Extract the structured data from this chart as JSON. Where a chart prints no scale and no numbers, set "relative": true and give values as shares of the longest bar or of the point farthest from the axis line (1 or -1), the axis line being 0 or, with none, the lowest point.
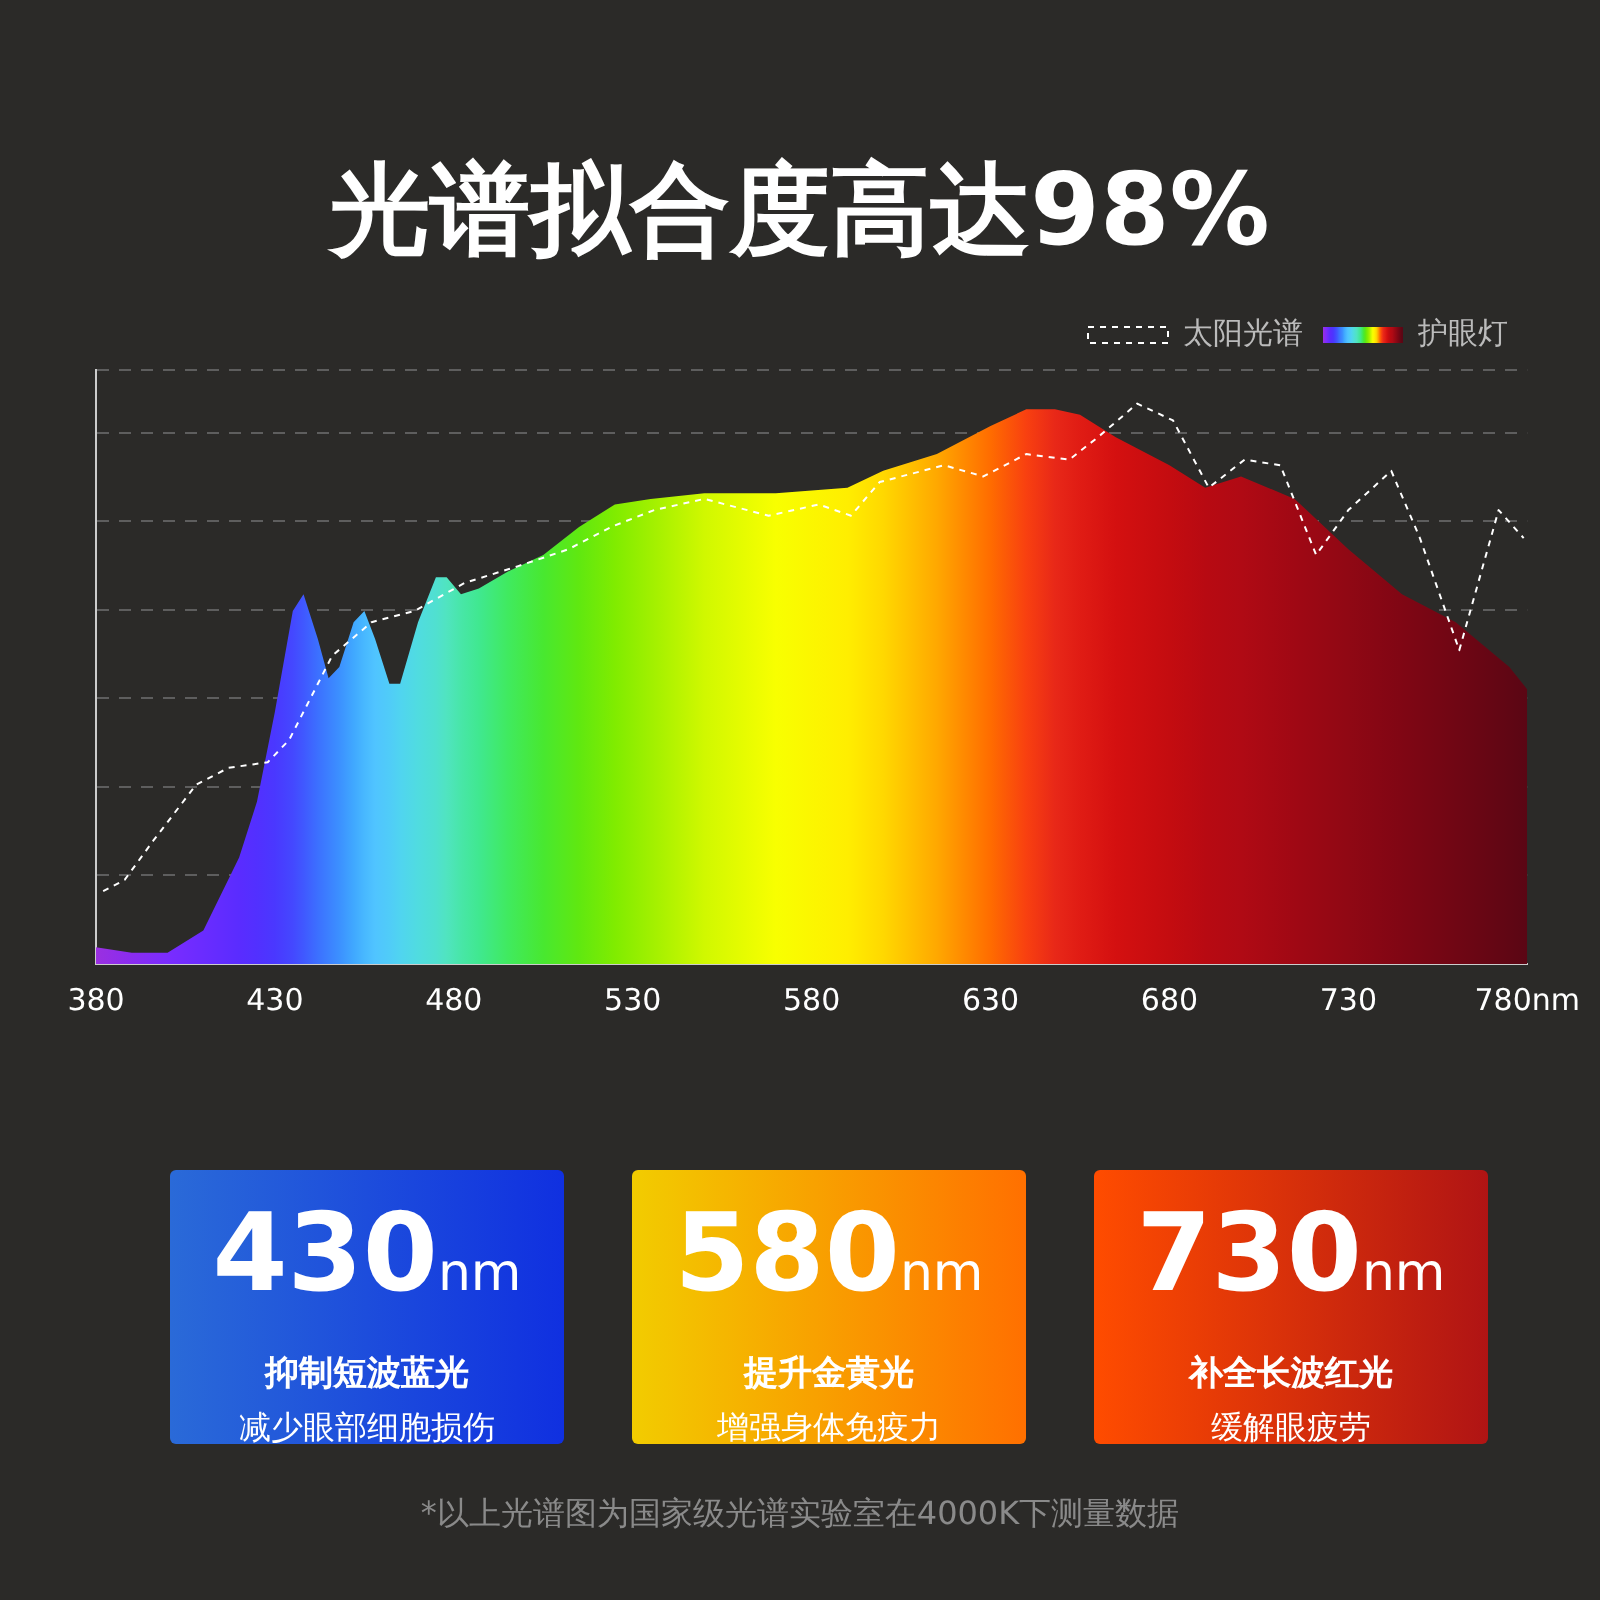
{
  "chart_data": {
    "type": "area",
    "title": "光谱拟合度高达98%",
    "relative": true,
    "grid": "y",
    "legend": "top right",
    "xlim": [
      380,
      780
    ],
    "xticks": [
      380,
      430,
      480,
      530,
      580,
      630,
      680,
      730,
      {
        "value": 780,
        "label": "780nm"
      }
    ],
    "series": [
      {
        "name": "太阳光谱",
        "type": "line",
        "line_style": "dashed",
        "color": "#ffffff",
        "x": [
          382,
          388,
          396,
          408,
          417,
          428,
          434,
          446,
          457,
          469,
          483,
          498,
          512,
          524,
          536,
          550,
          568,
          582,
          591,
          599,
          617,
          628,
          640,
          652,
          660,
          671,
          681,
          691,
          701,
          711,
          721,
          730,
          742,
          750,
          761,
          772,
          779
        ],
        "values": [
          0.13,
          0.15,
          0.22,
          0.32,
          0.35,
          0.36,
          0.4,
          0.55,
          0.61,
          0.63,
          0.68,
          0.71,
          0.74,
          0.78,
          0.81,
          0.83,
          0.8,
          0.82,
          0.8,
          0.86,
          0.89,
          0.87,
          0.91,
          0.9,
          0.94,
          1.0,
          0.97,
          0.85,
          0.9,
          0.89,
          0.73,
          0.81,
          0.88,
          0.76,
          0.56,
          0.81,
          0.76
        ]
      },
      {
        "name": "护眼灯",
        "type": "area",
        "x": [
          380,
          390,
          400,
          410,
          420,
          425,
          430,
          435,
          438,
          442,
          445,
          448,
          452,
          455,
          458,
          462,
          465,
          470,
          475,
          478,
          482,
          487,
          495,
          505,
          515,
          525,
          535,
          550,
          570,
          590,
          600,
          615,
          630,
          640,
          648,
          655,
          665,
          680,
          690,
          700,
          715,
          730,
          745,
          760,
          775,
          780
        ],
        "values": [
          0.03,
          0.02,
          0.02,
          0.06,
          0.19,
          0.29,
          0.45,
          0.63,
          0.66,
          0.58,
          0.51,
          0.53,
          0.61,
          0.63,
          0.58,
          0.5,
          0.5,
          0.61,
          0.69,
          0.69,
          0.66,
          0.67,
          0.7,
          0.73,
          0.78,
          0.82,
          0.83,
          0.84,
          0.84,
          0.85,
          0.88,
          0.91,
          0.96,
          0.99,
          0.99,
          0.98,
          0.94,
          0.89,
          0.85,
          0.87,
          0.83,
          0.74,
          0.66,
          0.61,
          0.53,
          0.49
        ],
        "colors": [
          "#9a30e0",
          "#8a2cf0",
          "#7a2cff",
          "#6a2cff",
          "#5a2cff",
          "#5230ff",
          "#4a38ff",
          "#4448ff",
          "#4058ff",
          "#3c70ff",
          "#3c80ff",
          "#3c90ff",
          "#40a8ff",
          "#48b8ff",
          "#50c4ff",
          "#50ccf8",
          "#50d4f0",
          "#50dce0",
          "#50e0d0",
          "#50e4c0",
          "#48e6a8",
          "#40e890",
          "#40ea60",
          "#48e830",
          "#60e810",
          "#80ec00",
          "#a0f000",
          "#d0f800",
          "#f8ff00",
          "#ffee00",
          "#ffd800",
          "#ffa800",
          "#ff6c00",
          "#f84010",
          "#e82818",
          "#e01c14",
          "#d41010",
          "#c40c10",
          "#b80a12",
          "#b00a14",
          "#a00814",
          "#900814",
          "#800614",
          "#700614",
          "#600614",
          "#5a0614"
        ]
      }
    ],
    "annotations": [
      "430nm",
      "抑制短波蓝光",
      "减少眼部细胞损伤",
      "580nm",
      "提升金黄光",
      "增强身体免疫力",
      "730nm",
      "补全长波红光",
      "缓解眼疲劳",
      "*以上光谱图为国家级光谱实验室在4000K下测量数据"
    ]
  }
}
